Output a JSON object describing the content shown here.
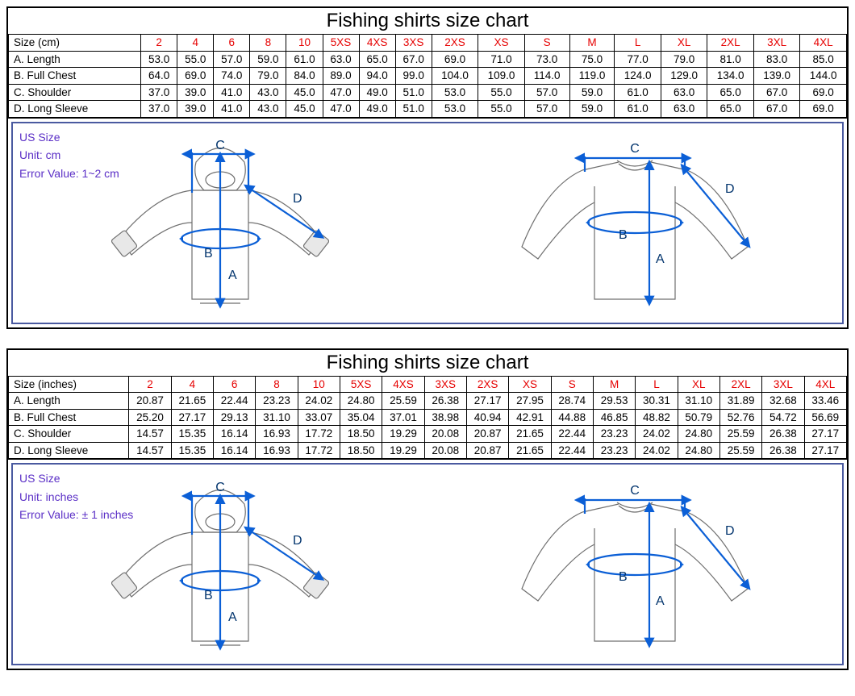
{
  "title": "Fishing shirts size chart",
  "diagram": {
    "labels": {
      "a": "A",
      "b": "B",
      "c": "C",
      "d": "D"
    },
    "outline_color": "#6f6f6f",
    "outline_width": 1.2,
    "measure_color": "#0b5fd6",
    "measure_width": 2.2,
    "letter_color": "#03356e",
    "letter_fontsize": 16,
    "panel_border_color": "#4a5aa0"
  },
  "info_color": "#5a2ec6",
  "size_label_color": "#e60000",
  "charts": [
    {
      "unit_label": "Size (cm)",
      "info_lines": [
        "US Size",
        "Unit: cm",
        "Error Value: 1~2 cm"
      ],
      "sizes": [
        "2",
        "4",
        "6",
        "8",
        "10",
        "5XS",
        "4XS",
        "3XS",
        "2XS",
        "XS",
        "S",
        "M",
        "L",
        "XL",
        "2XL",
        "3XL",
        "4XL"
      ],
      "rows": [
        {
          "label": "A. Length",
          "values": [
            "53.0",
            "55.0",
            "57.0",
            "59.0",
            "61.0",
            "63.0",
            "65.0",
            "67.0",
            "69.0",
            "71.0",
            "73.0",
            "75.0",
            "77.0",
            "79.0",
            "81.0",
            "83.0",
            "85.0"
          ]
        },
        {
          "label": "B. Full Chest",
          "values": [
            "64.0",
            "69.0",
            "74.0",
            "79.0",
            "84.0",
            "89.0",
            "94.0",
            "99.0",
            "104.0",
            "109.0",
            "114.0",
            "119.0",
            "124.0",
            "129.0",
            "134.0",
            "139.0",
            "144.0"
          ]
        },
        {
          "label": "C. Shoulder",
          "values": [
            "37.0",
            "39.0",
            "41.0",
            "43.0",
            "45.0",
            "47.0",
            "49.0",
            "51.0",
            "53.0",
            "55.0",
            "57.0",
            "59.0",
            "61.0",
            "63.0",
            "65.0",
            "67.0",
            "69.0"
          ]
        },
        {
          "label": "D. Long Sleeve",
          "values": [
            "37.0",
            "39.0",
            "41.0",
            "43.0",
            "45.0",
            "47.0",
            "49.0",
            "51.0",
            "53.0",
            "55.0",
            "57.0",
            "59.0",
            "61.0",
            "63.0",
            "65.0",
            "67.0",
            "69.0"
          ]
        }
      ]
    },
    {
      "unit_label": "Size (inches)",
      "info_lines": [
        "US Size",
        "Unit: inches",
        "Error Value: ± 1 inches"
      ],
      "sizes": [
        "2",
        "4",
        "6",
        "8",
        "10",
        "5XS",
        "4XS",
        "3XS",
        "2XS",
        "XS",
        "S",
        "M",
        "L",
        "XL",
        "2XL",
        "3XL",
        "4XL"
      ],
      "rows": [
        {
          "label": "A. Length",
          "values": [
            "20.87",
            "21.65",
            "22.44",
            "23.23",
            "24.02",
            "24.80",
            "25.59",
            "26.38",
            "27.17",
            "27.95",
            "28.74",
            "29.53",
            "30.31",
            "31.10",
            "31.89",
            "32.68",
            "33.46"
          ]
        },
        {
          "label": "B. Full Chest",
          "values": [
            "25.20",
            "27.17",
            "29.13",
            "31.10",
            "33.07",
            "35.04",
            "37.01",
            "38.98",
            "40.94",
            "42.91",
            "44.88",
            "46.85",
            "48.82",
            "50.79",
            "52.76",
            "54.72",
            "56.69"
          ]
        },
        {
          "label": "C. Shoulder",
          "values": [
            "14.57",
            "15.35",
            "16.14",
            "16.93",
            "17.72",
            "18.50",
            "19.29",
            "20.08",
            "20.87",
            "21.65",
            "22.44",
            "23.23",
            "24.02",
            "24.80",
            "25.59",
            "26.38",
            "27.17"
          ]
        },
        {
          "label": "D. Long Sleeve",
          "values": [
            "14.57",
            "15.35",
            "16.14",
            "16.93",
            "17.72",
            "18.50",
            "19.29",
            "20.08",
            "20.87",
            "21.65",
            "22.44",
            "23.23",
            "24.02",
            "24.80",
            "25.59",
            "26.38",
            "27.17"
          ]
        }
      ]
    }
  ]
}
